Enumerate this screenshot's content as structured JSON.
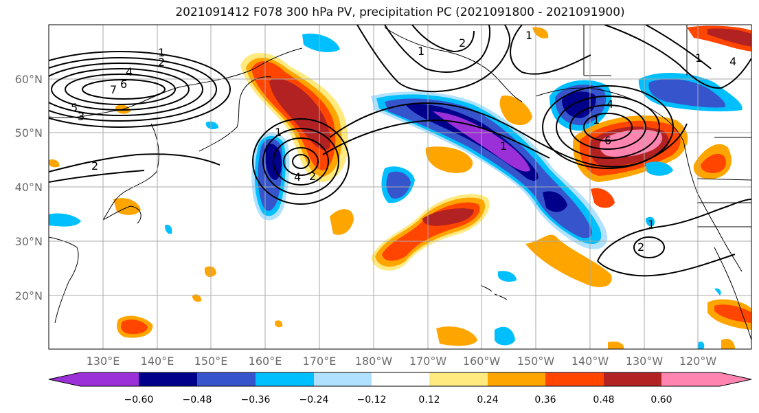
{
  "title": "2021091412 F078 300 hPa PV, precipitation PC (2021091800 - 2021091900)",
  "lat_labels": [
    "60°N",
    "50°N",
    "40°N",
    "30°N",
    "20°N"
  ],
  "lon_labels": [
    "130°E",
    "140°E",
    "150°E",
    "160°E",
    "170°E",
    "180°W",
    "170°W",
    "160°W",
    "150°W",
    "140°W",
    "130°W",
    "120°W"
  ],
  "colorbar": {
    "colors": [
      "#9b30d8",
      "#00008b",
      "#3655cc",
      "#00bfff",
      "#b0e2ff",
      "#ffffff",
      "#ffea80",
      "#ffa500",
      "#ff4500",
      "#b22222",
      "#ff85b0"
    ],
    "labels": [
      "−0.60",
      "−0.48",
      "−0.36",
      "−0.24",
      "−0.12",
      "0.12",
      "0.24",
      "0.36",
      "0.48",
      "0.60"
    ]
  },
  "contour_labels": [
    "1",
    "2",
    "4",
    "6",
    "7",
    "5",
    "3",
    "2",
    "1",
    "4",
    "2",
    "1",
    "4",
    "6",
    "1",
    "2",
    "1",
    "2",
    "1",
    "4",
    "1",
    "1"
  ]
}
